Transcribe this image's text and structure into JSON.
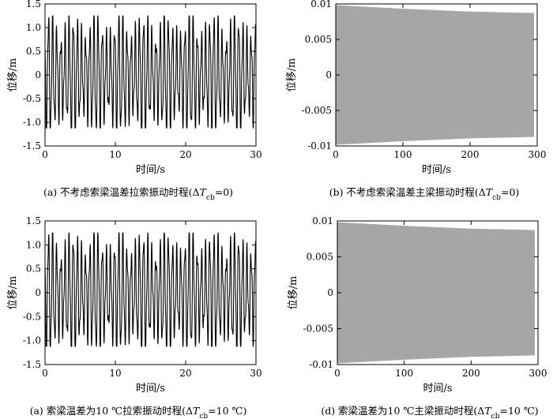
{
  "chart_data": [
    {
      "type": "line",
      "caption": {
        "prefix": "(a) 不考虑索梁温差拉索振动时程(Δ",
        "T": "T",
        "sub": "cb",
        "suffix": "=0)"
      },
      "xlabel": "时间/s",
      "ylabel": "位移/m",
      "xlim": [
        0,
        30
      ],
      "ylim": [
        -1.5,
        1.5
      ],
      "xticks": [
        0,
        10,
        20,
        30
      ],
      "yticks": [
        -1.5,
        -1.0,
        -0.5,
        0,
        0.5,
        1.0,
        1.5
      ],
      "ytick_labels": [
        "-1.5",
        "-1.0",
        "-0.5",
        "0",
        "0.5",
        "1.0",
        "1.5"
      ],
      "series": [
        {
          "color": "#000000",
          "signal": {
            "beat_envelope_range": [
              0.75,
              1.2
            ],
            "oscillation_peaks_total": 51,
            "min_level": -1.12,
            "start_value": 0.5,
            "end_value": -0.3
          }
        }
      ],
      "grid": false
    },
    {
      "type": "area",
      "caption": {
        "prefix": "(b) 不考虑索梁温差主梁振动时程(Δ",
        "T": "T",
        "sub": "cb",
        "suffix": "=0)"
      },
      "xlabel": "时间/s",
      "ylabel": "位移/m",
      "xlim": [
        0,
        300
      ],
      "ylim": [
        -0.01,
        0.01
      ],
      "xticks": [
        0,
        100,
        200,
        300
      ],
      "yticks": [
        -0.01,
        -0.005,
        0,
        0.005,
        0.01
      ],
      "ytick_labels": [
        "-0.01",
        "-0.005",
        "0",
        "0.005",
        "0.01"
      ],
      "series": [
        {
          "color": "#a6a6a6",
          "envelope": {
            "x": [
              0,
              100,
              200,
              295
            ],
            "upper": [
              0.0098,
              0.0093,
              0.0089,
              0.0087
            ],
            "lower": [
              -0.0098,
              -0.0093,
              -0.0089,
              -0.0087
            ]
          }
        }
      ],
      "grid": false
    },
    {
      "type": "line",
      "caption": {
        "prefix": "(a) 索梁温差为10 ℃拉索振动时程(Δ",
        "T": "T",
        "sub": "cb",
        "suffix": "=10 ℃)"
      },
      "xlabel": "时间/s",
      "ylabel": "位移/m",
      "xlim": [
        0,
        30
      ],
      "ylim": [
        -1.5,
        1.5
      ],
      "xticks": [
        0,
        10,
        20,
        30
      ],
      "yticks": [
        -1.5,
        -1.0,
        -0.5,
        0,
        0.5,
        1.0,
        1.5
      ],
      "ytick_labels": [
        "-1.5",
        "-1.0",
        "-0.5",
        "0",
        "0.5",
        "1.0",
        "1.5"
      ],
      "series": [
        {
          "color": "#000000",
          "signal": {
            "beat_envelope_range": [
              0.75,
              1.2
            ],
            "oscillation_peaks_total": 51,
            "min_level": -1.12,
            "start_value": 0.5,
            "end_value": -0.3
          }
        }
      ],
      "grid": false
    },
    {
      "type": "area",
      "caption": {
        "prefix": "(d) 索梁温差为10 ℃主梁振动时程(Δ",
        "T": "T",
        "sub": "cb",
        "suffix": "=10 ℃)"
      },
      "xlabel": "时间/s",
      "ylabel": "位移/m",
      "xlim": [
        0,
        300
      ],
      "ylim": [
        -0.01,
        0.01
      ],
      "xticks": [
        0,
        100,
        200,
        300
      ],
      "yticks": [
        -0.01,
        -0.005,
        0,
        0.005,
        0.01
      ],
      "ytick_labels": [
        "-0.01",
        "-0.005",
        "0",
        "0.005",
        "0.01"
      ],
      "series": [
        {
          "color": "#a6a6a6",
          "envelope": {
            "x": [
              0,
              100,
              200,
              295
            ],
            "upper": [
              0.0098,
              0.0093,
              0.0089,
              0.0087
            ],
            "lower": [
              -0.0098,
              -0.0093,
              -0.0089,
              -0.0087
            ]
          }
        }
      ],
      "grid": false
    }
  ]
}
